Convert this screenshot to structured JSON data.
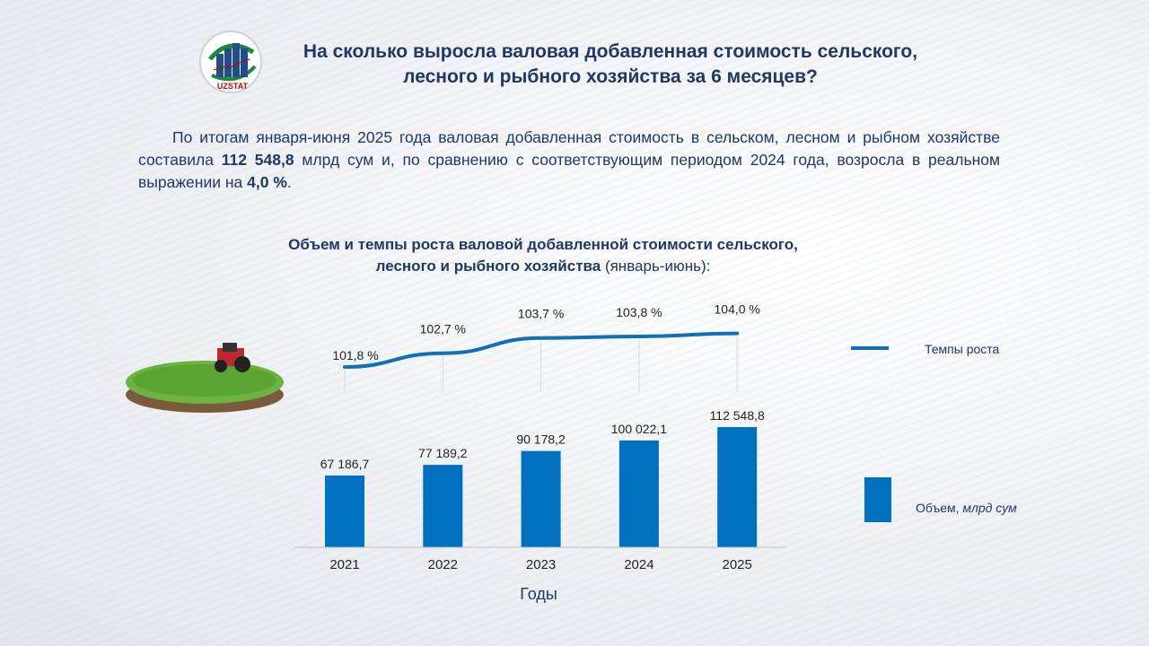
{
  "logo": {
    "text": "UZSTAT"
  },
  "title": "На сколько выросла валовая добавленная стоимость сельского, лесного и рыбного хозяйства за 6 месяцев?",
  "paragraph": {
    "p1": "По итогам января-июня 2025 года валовая добавленная стоимость в сельском, лесном и рыбном хозяйстве составила ",
    "value": "112 548,8",
    "p2": " млрд сум и, по сравнению с соответствующим периодом 2024 года, возросла в реальном выражении на ",
    "growth": "4,0 %",
    "p3": "."
  },
  "chart_data": {
    "type": "bar+line",
    "title": "Объем и темпы роста валовой добавленной стоимости сельского, лесного и рыбного хозяйства",
    "title_suffix": "(январь-июнь):",
    "categories": [
      "2021",
      "2022",
      "2023",
      "2024",
      "2025"
    ],
    "xlabel": "Годы",
    "series": [
      {
        "name": "Объем, млрд сум",
        "name_main": "Объем, ",
        "name_italic": "млрд сум",
        "type": "bar",
        "color": "#0070c0",
        "values": [
          67186.7,
          77189.2,
          90178.2,
          100022.1,
          112548.8
        ],
        "labels": [
          "67 186,7",
          "77 189,2",
          "90 178,2",
          "100 022,1",
          "112 548,8"
        ]
      },
      {
        "name": "Темпы роста",
        "type": "line",
        "color": "#0e6fbc",
        "values": [
          101.8,
          102.7,
          103.7,
          103.8,
          104.0
        ],
        "labels": [
          "101,8 %",
          "102,7 %",
          "103,7 %",
          "103,8 %",
          "104,0 %"
        ]
      }
    ],
    "legend": "right"
  }
}
